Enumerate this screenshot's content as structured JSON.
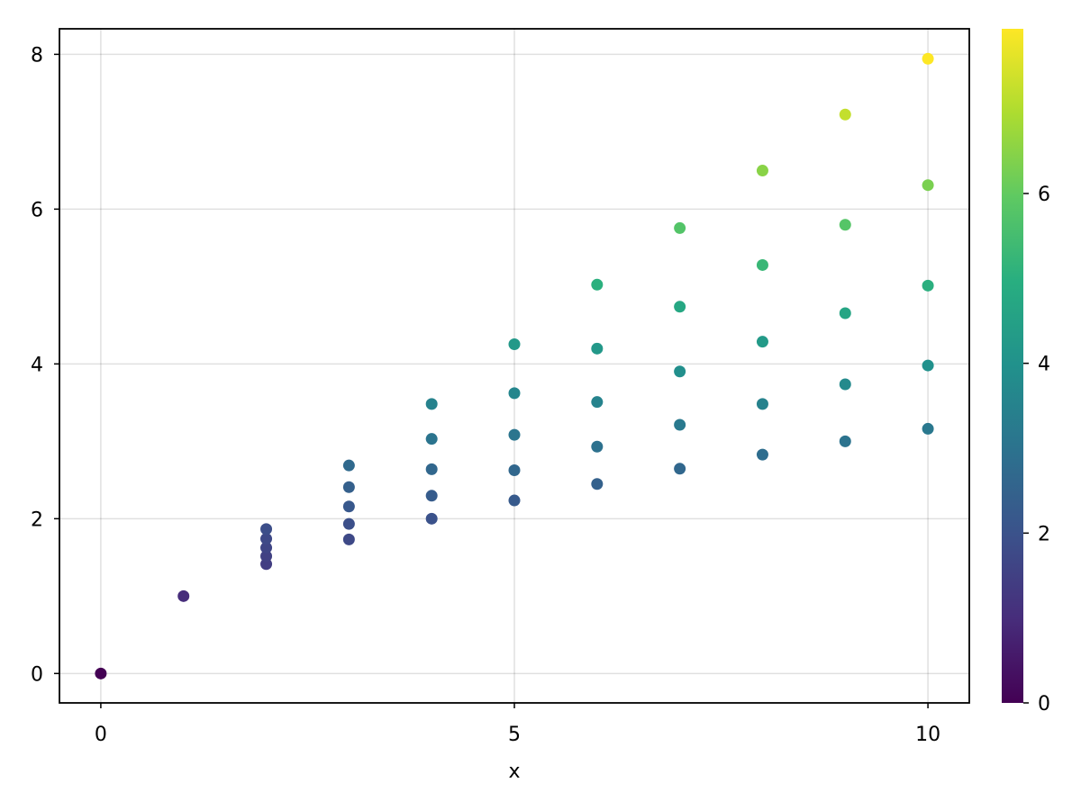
{
  "chart_data": {
    "type": "scatter",
    "title": "",
    "xlabel": "x",
    "ylabel": "",
    "xlim": [
      -0.5,
      10.5
    ],
    "ylim": [
      -0.38,
      8.33
    ],
    "xticks": [
      0,
      5,
      10
    ],
    "xtick_labels": [
      "0",
      "5",
      "10"
    ],
    "yticks": [
      0,
      2,
      4,
      6,
      8
    ],
    "ytick_labels": [
      "0",
      "2",
      "4",
      "6",
      "8"
    ],
    "grid": true,
    "colormap": "viridis",
    "colorbar": {
      "range": [
        0,
        7.94
      ],
      "ticks": [
        0,
        2,
        4,
        6
      ],
      "tick_labels": [
        "0",
        "2",
        "4",
        "6"
      ],
      "position": "right"
    },
    "points": [
      {
        "x": 0,
        "y": 0.0
      },
      {
        "x": 1,
        "y": 1.0
      },
      {
        "x": 2,
        "y": 1.414
      },
      {
        "x": 2,
        "y": 1.516
      },
      {
        "x": 2,
        "y": 1.625
      },
      {
        "x": 2,
        "y": 1.741
      },
      {
        "x": 2,
        "y": 1.866
      },
      {
        "x": 3,
        "y": 1.732
      },
      {
        "x": 3,
        "y": 1.933
      },
      {
        "x": 3,
        "y": 2.158
      },
      {
        "x": 3,
        "y": 2.408
      },
      {
        "x": 3,
        "y": 2.688
      },
      {
        "x": 4,
        "y": 2.0
      },
      {
        "x": 4,
        "y": 2.297
      },
      {
        "x": 4,
        "y": 2.639
      },
      {
        "x": 4,
        "y": 3.031
      },
      {
        "x": 4,
        "y": 3.482
      },
      {
        "x": 5,
        "y": 2.236
      },
      {
        "x": 5,
        "y": 2.626
      },
      {
        "x": 5,
        "y": 3.084
      },
      {
        "x": 5,
        "y": 3.622
      },
      {
        "x": 5,
        "y": 4.254
      },
      {
        "x": 6,
        "y": 2.449
      },
      {
        "x": 6,
        "y": 2.931
      },
      {
        "x": 6,
        "y": 3.508
      },
      {
        "x": 6,
        "y": 4.198
      },
      {
        "x": 6,
        "y": 5.024
      },
      {
        "x": 7,
        "y": 2.646
      },
      {
        "x": 7,
        "y": 3.213
      },
      {
        "x": 7,
        "y": 3.902
      },
      {
        "x": 7,
        "y": 4.739
      },
      {
        "x": 7,
        "y": 5.755
      },
      {
        "x": 8,
        "y": 2.828
      },
      {
        "x": 8,
        "y": 3.482
      },
      {
        "x": 8,
        "y": 4.287
      },
      {
        "x": 8,
        "y": 5.278
      },
      {
        "x": 8,
        "y": 6.498
      },
      {
        "x": 9,
        "y": 3.0
      },
      {
        "x": 9,
        "y": 3.737
      },
      {
        "x": 9,
        "y": 4.655
      },
      {
        "x": 9,
        "y": 5.798
      },
      {
        "x": 9,
        "y": 7.222
      },
      {
        "x": 10,
        "y": 3.162
      },
      {
        "x": 10,
        "y": 3.98
      },
      {
        "x": 10,
        "y": 5.012
      },
      {
        "x": 10,
        "y": 6.31
      },
      {
        "x": 10,
        "y": 7.943
      }
    ]
  }
}
